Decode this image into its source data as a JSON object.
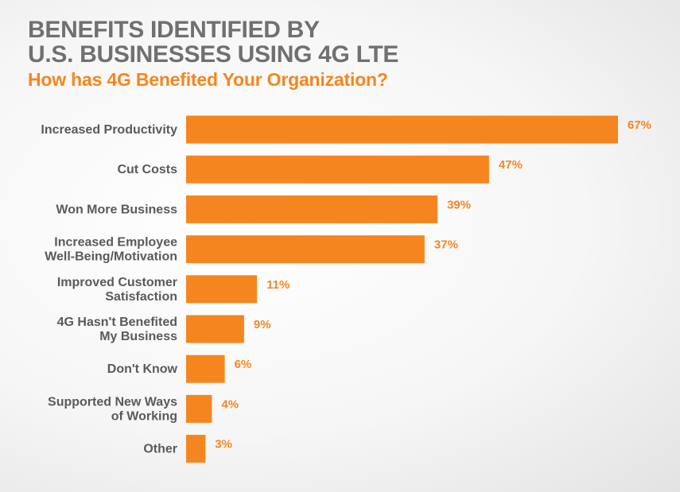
{
  "chart_data": {
    "type": "bar",
    "orientation": "horizontal",
    "title_lines": [
      "BENEFITS IDENTIFIED BY",
      "U.S. BUSINESSES USING 4G LTE"
    ],
    "subtitle": "How has 4G Benefited Your Organization?",
    "categories": [
      [
        "Increased Productivity"
      ],
      [
        "Cut Costs"
      ],
      [
        "Won More Business"
      ],
      [
        "Increased Employee",
        "Well-Being/Motivation"
      ],
      [
        "Improved Customer",
        "Satisfaction"
      ],
      [
        "4G Hasn't Benefited",
        "My Business"
      ],
      [
        "Don't Know"
      ],
      [
        "Supported New Ways",
        "of Working"
      ],
      [
        "Other"
      ]
    ],
    "values": [
      67,
      47,
      39,
      37,
      11,
      9,
      6,
      4,
      3
    ],
    "value_labels": [
      "67%",
      "47%",
      "39%",
      "37%",
      "11%",
      "9%",
      "6%",
      "4%",
      "3%"
    ],
    "unit": "%",
    "xlim": [
      0,
      67
    ],
    "grid": false,
    "legend": "none",
    "bar_color": "#f5861f",
    "label_color": "#5a5a5a",
    "value_label_color": "#f5861f",
    "title_color": "#707070"
  }
}
